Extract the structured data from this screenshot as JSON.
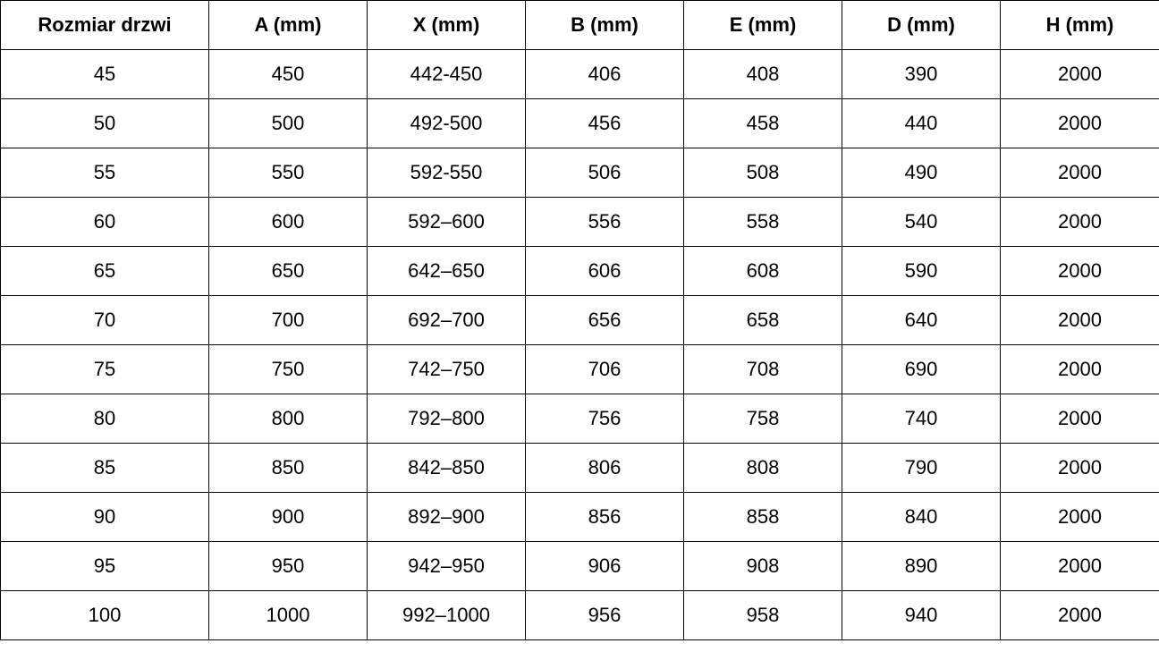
{
  "table": {
    "headers": [
      "Rozmiar drzwi",
      "A (mm)",
      "X (mm)",
      "B (mm)",
      "E (mm)",
      "D (mm)",
      "H (mm)"
    ],
    "rows": [
      [
        "45",
        "450",
        "442-450",
        "406",
        "408",
        "390",
        "2000"
      ],
      [
        "50",
        "500",
        "492-500",
        "456",
        "458",
        "440",
        "2000"
      ],
      [
        "55",
        "550",
        "592-550",
        "506",
        "508",
        "490",
        "2000"
      ],
      [
        "60",
        "600",
        "592–600",
        "556",
        "558",
        "540",
        "2000"
      ],
      [
        "65",
        "650",
        "642–650",
        "606",
        "608",
        "590",
        "2000"
      ],
      [
        "70",
        "700",
        "692–700",
        "656",
        "658",
        "640",
        "2000"
      ],
      [
        "75",
        "750",
        "742–750",
        "706",
        "708",
        "690",
        "2000"
      ],
      [
        "80",
        "800",
        "792–800",
        "756",
        "758",
        "740",
        "2000"
      ],
      [
        "85",
        "850",
        "842–850",
        "806",
        "808",
        "790",
        "2000"
      ],
      [
        "90",
        "900",
        "892–900",
        "856",
        "858",
        "840",
        "2000"
      ],
      [
        "95",
        "950",
        "942–950",
        "906",
        "908",
        "890",
        "2000"
      ],
      [
        "100",
        "1000",
        "992–1000",
        "956",
        "958",
        "940",
        "2000"
      ]
    ]
  }
}
